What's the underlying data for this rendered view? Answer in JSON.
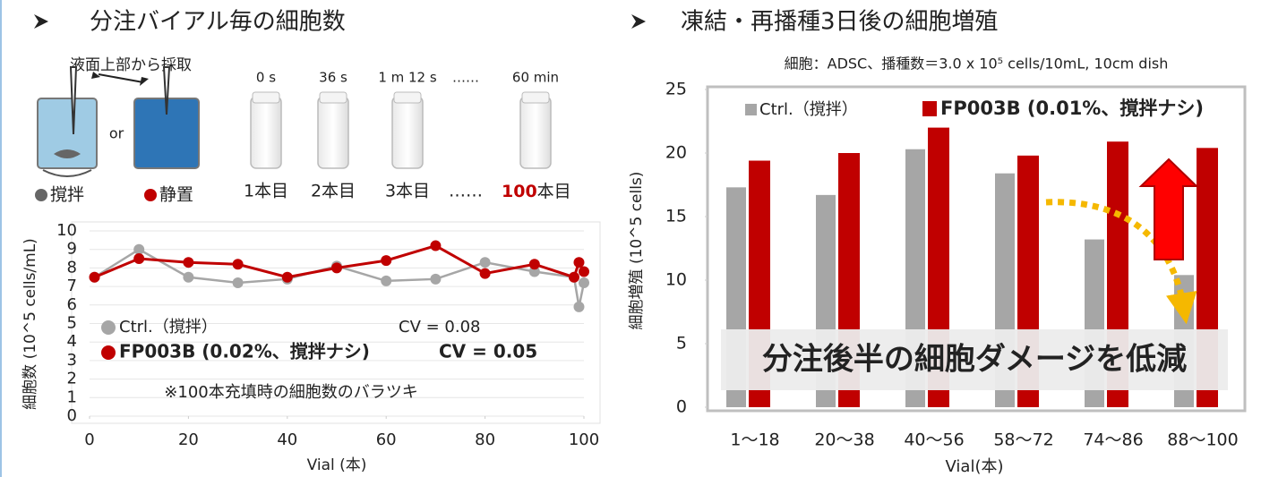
{
  "slide": {
    "left_heading": "分注バイアル毎の細胞数",
    "right_heading": "凍結・再播種3日後の細胞増殖",
    "diagram": {
      "sampling": "液面上部から採取",
      "or": "or",
      "stirred": "撹拌",
      "still": "静置",
      "times": [
        "0 s",
        "36 s",
        "1 m 12 s",
        "……",
        "60 min"
      ],
      "vials": [
        "1本目",
        "2本目",
        "3本目",
        "……"
      ],
      "last_vial": {
        "number": "100",
        "unit": "本目"
      }
    }
  },
  "chart_data": [
    {
      "type": "line",
      "x_label": "Vial (本)",
      "y_label": "細胞数 (10^5 cells/mL)",
      "x": [
        1,
        10,
        20,
        30,
        40,
        50,
        60,
        70,
        80,
        90,
        98,
        99,
        100
      ],
      "xlim": [
        0,
        100
      ],
      "xticks": [
        0,
        20,
        40,
        60,
        80,
        100
      ],
      "ylim": [
        0,
        10
      ],
      "yticks": [
        0,
        1,
        2,
        3,
        4,
        5,
        6,
        7,
        8,
        9,
        10
      ],
      "grid": true,
      "series": [
        {
          "name": "Ctrl.（撹拌）",
          "color": "#a6a6a6",
          "cv_label": "CV = 0.08",
          "values": [
            7.5,
            9.0,
            7.5,
            7.2,
            7.4,
            8.1,
            7.3,
            7.4,
            8.3,
            7.8,
            7.5,
            5.9,
            7.2
          ]
        },
        {
          "name": "FP003B (0.02%、撹拌ナシ)",
          "color": "#c00000",
          "cv_label": "CV = 0.05",
          "values": [
            7.5,
            8.5,
            8.3,
            8.2,
            7.5,
            8.0,
            8.4,
            9.2,
            7.7,
            8.2,
            7.5,
            8.3,
            7.8
          ]
        }
      ],
      "note": "※100本充填時の細胞数のバラツキ"
    },
    {
      "type": "bar",
      "subtitle": "細胞：ADSC、播種数＝3.0 x 10⁵ cells/10mL, 10cm dish",
      "x_label": "Vial(本)",
      "y_label": "細胞増殖 (10^5 cells)",
      "categories": [
        "1〜18",
        "20〜38",
        "40〜56",
        "58〜72",
        "74〜86",
        "88〜100"
      ],
      "ylim": [
        0,
        25
      ],
      "yticks": [
        0,
        5,
        10,
        15,
        20,
        25
      ],
      "grid": false,
      "series": [
        {
          "name": "Ctrl.（撹拌）",
          "color": "#a6a6a6",
          "values": [
            17.3,
            16.7,
            20.3,
            18.4,
            13.2,
            10.4
          ]
        },
        {
          "name": "FP003B (0.01%、撹拌ナシ)",
          "color": "#c00000",
          "values": [
            19.4,
            20.0,
            22.0,
            19.8,
            20.9,
            20.4
          ]
        }
      ],
      "annotation": "分注後半の細胞ダメージを低減"
    }
  ]
}
